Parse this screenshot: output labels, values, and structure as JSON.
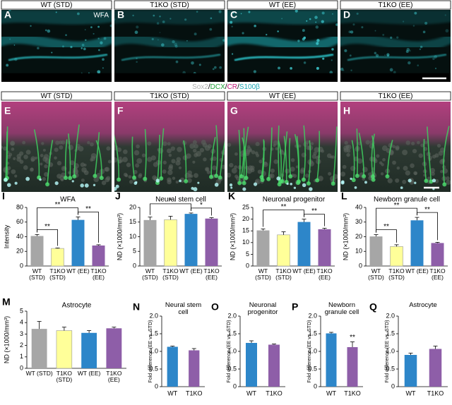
{
  "figure_top": {
    "headers": [
      "WT (STD)",
      "T1KO (STD)",
      "WT (EE)",
      "T1KO (EE)"
    ],
    "panels": [
      "A",
      "B",
      "C",
      "D"
    ],
    "stain": "WFA"
  },
  "figure_middle": {
    "stain": [
      {
        "text": "Sox2",
        "color": "#b0b0b0"
      },
      {
        "text": "/",
        "color": "#000000"
      },
      {
        "text": "DCX",
        "color": "#22a33a"
      },
      {
        "text": "/",
        "color": "#000000"
      },
      {
        "text": "CR",
        "color": "#c2187a"
      },
      {
        "text": "/",
        "color": "#000000"
      },
      {
        "text": "S100β",
        "color": "#1aa7b5"
      }
    ],
    "headers": [
      "WT (STD)",
      "T1KO (STD)",
      "WT (EE)",
      "T1KO (EE)"
    ],
    "panels": [
      "E",
      "F",
      "G",
      "H"
    ]
  },
  "chart_data": [
    {
      "type": "bar",
      "label": "I",
      "title": "WFA",
      "ylabel": "Intensity",
      "categories": [
        "WT (STD)",
        "T1KO (STD)",
        "WT (EE)",
        "T1KO (EE)"
      ],
      "values": [
        41,
        24,
        63,
        28
      ],
      "errors": [
        2,
        0.6,
        4,
        1
      ],
      "colors": [
        "#a6a6a6",
        "#ffff99",
        "#2d86c9",
        "#8e5ea8"
      ],
      "ylim": [
        0,
        80
      ],
      "yticks": [
        0,
        20,
        40,
        60,
        80
      ],
      "significance": [
        {
          "between": [
            0,
            1
          ],
          "label": "**"
        },
        {
          "between": [
            0,
            2
          ],
          "label": "**"
        },
        {
          "between": [
            2,
            3
          ],
          "label": "**"
        }
      ]
    },
    {
      "type": "bar",
      "label": "J",
      "title": "Neural stem cell",
      "ylabel": "ND (×1000/mm³)",
      "categories": [
        "WT (STD)",
        "T1KO (STD)",
        "WT (EE)",
        "T1KO (EE)"
      ],
      "values": [
        15.7,
        15.8,
        17.8,
        16.2
      ],
      "errors": [
        1,
        1.2,
        0.3,
        0.3
      ],
      "colors": [
        "#a6a6a6",
        "#ffff99",
        "#2d86c9",
        "#8e5ea8"
      ],
      "ylim": [
        0,
        20
      ],
      "yticks": [
        0,
        5,
        10,
        15,
        20
      ],
      "significance": [
        {
          "between": [
            0,
            2
          ],
          "label": "*"
        },
        {
          "between": [
            2,
            3
          ],
          "label": "*"
        }
      ]
    },
    {
      "type": "bar",
      "label": "K",
      "title": "Neuronal progenitor",
      "ylabel": "ND (×1000/mm³)",
      "categories": [
        "WT (STD)",
        "T1KO (STD)",
        "WT (EE)",
        "T1KO (EE)"
      ],
      "values": [
        15.2,
        13.3,
        18.8,
        15.7
      ],
      "errors": [
        0.6,
        1.3,
        1.2,
        0.4
      ],
      "colors": [
        "#a6a6a6",
        "#ffff99",
        "#2d86c9",
        "#8e5ea8"
      ],
      "ylim": [
        0,
        25
      ],
      "yticks": [
        0,
        5,
        10,
        15,
        20,
        25
      ],
      "significance": [
        {
          "between": [
            0,
            2
          ],
          "label": "**"
        },
        {
          "between": [
            2,
            3
          ],
          "label": "**"
        }
      ]
    },
    {
      "type": "bar",
      "label": "L",
      "title": "Newborn granule cell",
      "ylabel": "ND (×1000/mm³)",
      "categories": [
        "WT (STD)",
        "T1KO (STD)",
        "WT (EE)",
        "T1KO (EE)"
      ],
      "values": [
        20.2,
        13.3,
        31.2,
        15.7
      ],
      "errors": [
        1.2,
        1.2,
        2,
        0.5
      ],
      "colors": [
        "#a6a6a6",
        "#ffff99",
        "#2d86c9",
        "#8e5ea8"
      ],
      "ylim": [
        0,
        40
      ],
      "yticks": [
        0,
        10,
        20,
        30,
        40
      ],
      "significance": [
        {
          "between": [
            0,
            1
          ],
          "label": "**"
        },
        {
          "between": [
            0,
            2
          ],
          "label": "**"
        },
        {
          "between": [
            2,
            3
          ],
          "label": "**"
        }
      ]
    },
    {
      "type": "bar",
      "label": "M",
      "title": "Astrocyte",
      "ylabel": "ND (×1000/mm³)",
      "categories": [
        "WT (STD)",
        "T1KO (STD)",
        "WT (EE)",
        "T1KO (EE)"
      ],
      "values": [
        3.45,
        3.3,
        3.1,
        3.5
      ],
      "errors": [
        0.65,
        0.3,
        0.2,
        0.1
      ],
      "colors": [
        "#a6a6a6",
        "#ffff99",
        "#2d86c9",
        "#8e5ea8"
      ],
      "ylim": [
        0,
        5
      ],
      "yticks": [
        0,
        1,
        2,
        3,
        4,
        5
      ],
      "significance": []
    },
    {
      "type": "bar",
      "label": "N",
      "title": "Neural stem cell",
      "ylabel": "Fold difference (EE vs. STD)",
      "categories": [
        "WT",
        "T1KO"
      ],
      "values": [
        1.13,
        1.03
      ],
      "errors": [
        0.02,
        0.05
      ],
      "colors": [
        "#2d86c9",
        "#8e5ea8"
      ],
      "ylim": [
        0,
        2
      ],
      "yticks": [
        0,
        0.5,
        {
          "value": 1,
          "label": "1.0"
        },
        1.5,
        {
          "value": 2,
          "label": "2.0"
        }
      ],
      "significance": []
    },
    {
      "type": "bar",
      "label": "O",
      "title": "Neuronal progenitor",
      "ylabel": "Fold difference (EE vs. STD)",
      "categories": [
        "WT",
        "T1KO"
      ],
      "values": [
        1.24,
        1.19
      ],
      "errors": [
        0.06,
        0.02
      ],
      "colors": [
        "#2d86c9",
        "#8e5ea8"
      ],
      "ylim": [
        0,
        2
      ],
      "yticks": [
        0,
        0.5,
        {
          "value": 1,
          "label": "1.0"
        },
        1.5,
        {
          "value": 2,
          "label": "2.0"
        }
      ],
      "significance": []
    },
    {
      "type": "bar",
      "label": "P",
      "title": "Newborn granule cell",
      "ylabel": "Fold difference (EE vs. STD)",
      "categories": [
        "WT",
        "T1KO"
      ],
      "values": [
        1.51,
        1.12
      ],
      "errors": [
        0.03,
        0.15
      ],
      "colors": [
        "#2d86c9",
        "#8e5ea8"
      ],
      "ylim": [
        0,
        2
      ],
      "yticks": [
        0,
        0.5,
        {
          "value": 1,
          "label": "1.0"
        },
        1.5,
        {
          "value": 2,
          "label": "2.0"
        }
      ],
      "significance": [
        {
          "between": [
            1
          ],
          "label": "**"
        }
      ]
    },
    {
      "type": "bar",
      "label": "Q",
      "title": "Astrocyte",
      "ylabel": "Fold difference (EE vs. STD)",
      "categories": [
        "WT",
        "T1KO"
      ],
      "values": [
        0.9,
        1.07
      ],
      "errors": [
        0.05,
        0.08
      ],
      "colors": [
        "#2d86c9",
        "#8e5ea8"
      ],
      "ylim": [
        0,
        2
      ],
      "yticks": [
        0,
        0.5,
        {
          "value": 1,
          "label": "1.0"
        },
        1.5,
        {
          "value": 2,
          "label": "2.0"
        }
      ],
      "significance": []
    }
  ]
}
